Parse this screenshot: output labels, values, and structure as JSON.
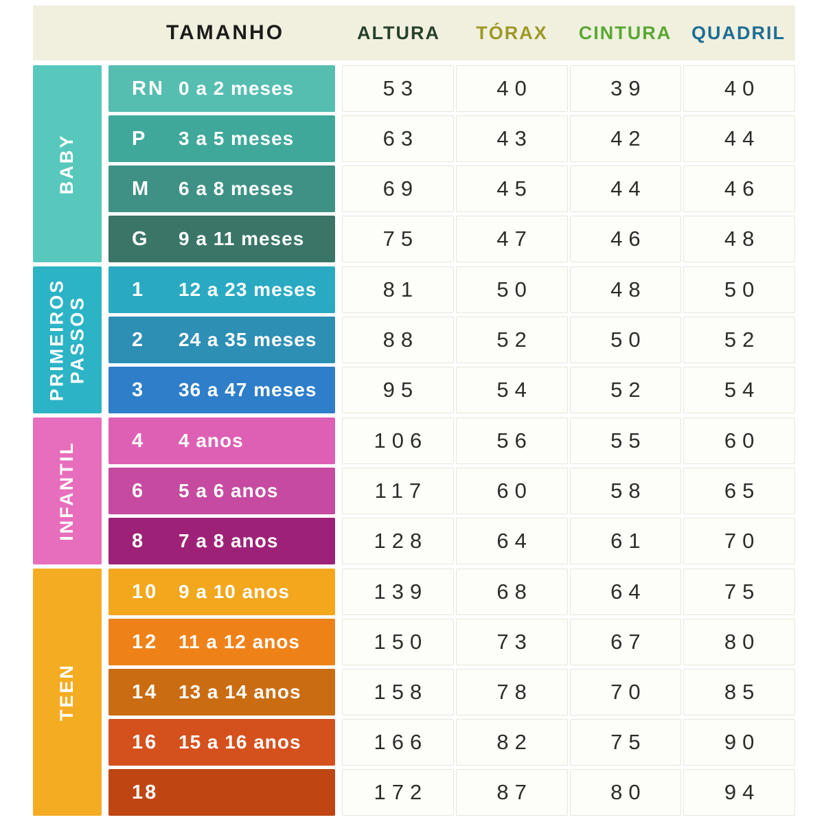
{
  "palette": {
    "header_bg": "#f1f0df",
    "cell_bg": "#fdfdf9",
    "bar_text": "#ffffff",
    "number_text": "#2c2c29"
  },
  "chart_data": {
    "type": "table",
    "headers": {
      "tamanho": "TAMANHO",
      "altura": "ALTURA",
      "torax": "TÓRAX",
      "cintura": "CINTURA",
      "quadril": "QUADRIL"
    },
    "header_colors": {
      "tamanho": "#1d1c1a",
      "altura": "#27402b",
      "torax": "#9c9826",
      "cintura": "#58a832",
      "quadril": "#1d6d94"
    },
    "sections": [
      {
        "label": "BABY",
        "color": "#58c8bc",
        "rows": [
          {
            "size": "RN",
            "age": "0 a 2 meses",
            "color": "#56bdb1",
            "altura": 53,
            "torax": 40,
            "cintura": 39,
            "quadril": 40
          },
          {
            "size": "P",
            "age": "3 a 5 meses",
            "color": "#3fa89b",
            "altura": 63,
            "torax": 43,
            "cintura": 42,
            "quadril": 44
          },
          {
            "size": "M",
            "age": "6 a 8 meses",
            "color": "#3f9185",
            "altura": 69,
            "torax": 45,
            "cintura": 44,
            "quadril": 46
          },
          {
            "size": "G",
            "age": "9 a 11 meses",
            "color": "#3a7568",
            "altura": 75,
            "torax": 47,
            "cintura": 46,
            "quadril": 48
          }
        ]
      },
      {
        "label": "PRIMEIROS PASSOS",
        "color": "#2cb3c6",
        "rows": [
          {
            "size": "1",
            "age": "12 a 23 meses",
            "color": "#29aac2",
            "altura": 81,
            "torax": 50,
            "cintura": 48,
            "quadril": 50
          },
          {
            "size": "2",
            "age": "24 a 35 meses",
            "color": "#2e8fb4",
            "altura": 88,
            "torax": 52,
            "cintura": 50,
            "quadril": 52
          },
          {
            "size": "3",
            "age": "36 a 47 meses",
            "color": "#2e7ec9",
            "altura": 95,
            "torax": 54,
            "cintura": 52,
            "quadril": 54
          }
        ]
      },
      {
        "label": "INFANTIL",
        "color": "#e76ebc",
        "rows": [
          {
            "size": "4",
            "age": "4 anos",
            "color": "#de60b4",
            "altura": 106,
            "torax": 56,
            "cintura": 55,
            "quadril": 60
          },
          {
            "size": "6",
            "age": "5 a 6 anos",
            "color": "#c64aa0",
            "altura": 117,
            "torax": 60,
            "cintura": 58,
            "quadril": 65
          },
          {
            "size": "8",
            "age": "7 a 8 anos",
            "color": "#9d2277",
            "altura": 128,
            "torax": 64,
            "cintura": 61,
            "quadril": 70
          }
        ]
      },
      {
        "label": "TEEN",
        "color": "#f4ac23",
        "rows": [
          {
            "size": "10",
            "age": "9 a 10 anos",
            "color": "#f2a71d",
            "altura": 139,
            "torax": 68,
            "cintura": 64,
            "quadril": 75
          },
          {
            "size": "12",
            "age": "11 a 12 anos",
            "color": "#ee8219",
            "altura": 150,
            "torax": 73,
            "cintura": 67,
            "quadril": 80
          },
          {
            "size": "14",
            "age": "13 a 14 anos",
            "color": "#ca6c11",
            "altura": 158,
            "torax": 78,
            "cintura": 70,
            "quadril": 85
          },
          {
            "size": "16",
            "age": "15 a 16 anos",
            "color": "#d4511d",
            "altura": 166,
            "torax": 82,
            "cintura": 75,
            "quadril": 90
          },
          {
            "size": "18",
            "age": "",
            "color": "#bf4512",
            "altura": 172,
            "torax": 87,
            "cintura": 80,
            "quadril": 94
          }
        ]
      }
    ]
  }
}
